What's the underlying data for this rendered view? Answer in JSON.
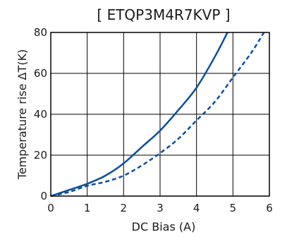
{
  "chart_data": {
    "type": "line",
    "title": "[ ETQP3M4R7KVP ]",
    "xlabel": "DC Bias (A)",
    "ylabel": "Temperature rise ΔT(K)",
    "xlim": [
      0,
      6
    ],
    "ylim": [
      0,
      80
    ],
    "x_ticks": [
      "0",
      "1",
      "2",
      "3",
      "4",
      "5",
      "6"
    ],
    "y_ticks": [
      "0",
      "20",
      "40",
      "60",
      "80"
    ],
    "grid": true,
    "series": [
      {
        "style": "solid",
        "color": "#0a4fa0",
        "x": [
          0,
          0.5,
          1.0,
          1.5,
          2.0,
          2.5,
          3.0,
          3.5,
          4.0,
          4.5,
          4.85
        ],
        "y": [
          0,
          3,
          6,
          10,
          16,
          24,
          32,
          42,
          53,
          68,
          80
        ]
      },
      {
        "style": "dashed",
        "color": "#0a4fa0",
        "x": [
          0,
          0.5,
          1.0,
          1.5,
          2.0,
          2.5,
          3.0,
          3.5,
          4.0,
          4.5,
          5.0,
          5.5,
          5.85
        ],
        "y": [
          0,
          2,
          5,
          7,
          10,
          15,
          21,
          28,
          37,
          46,
          58,
          70,
          80
        ]
      }
    ]
  }
}
